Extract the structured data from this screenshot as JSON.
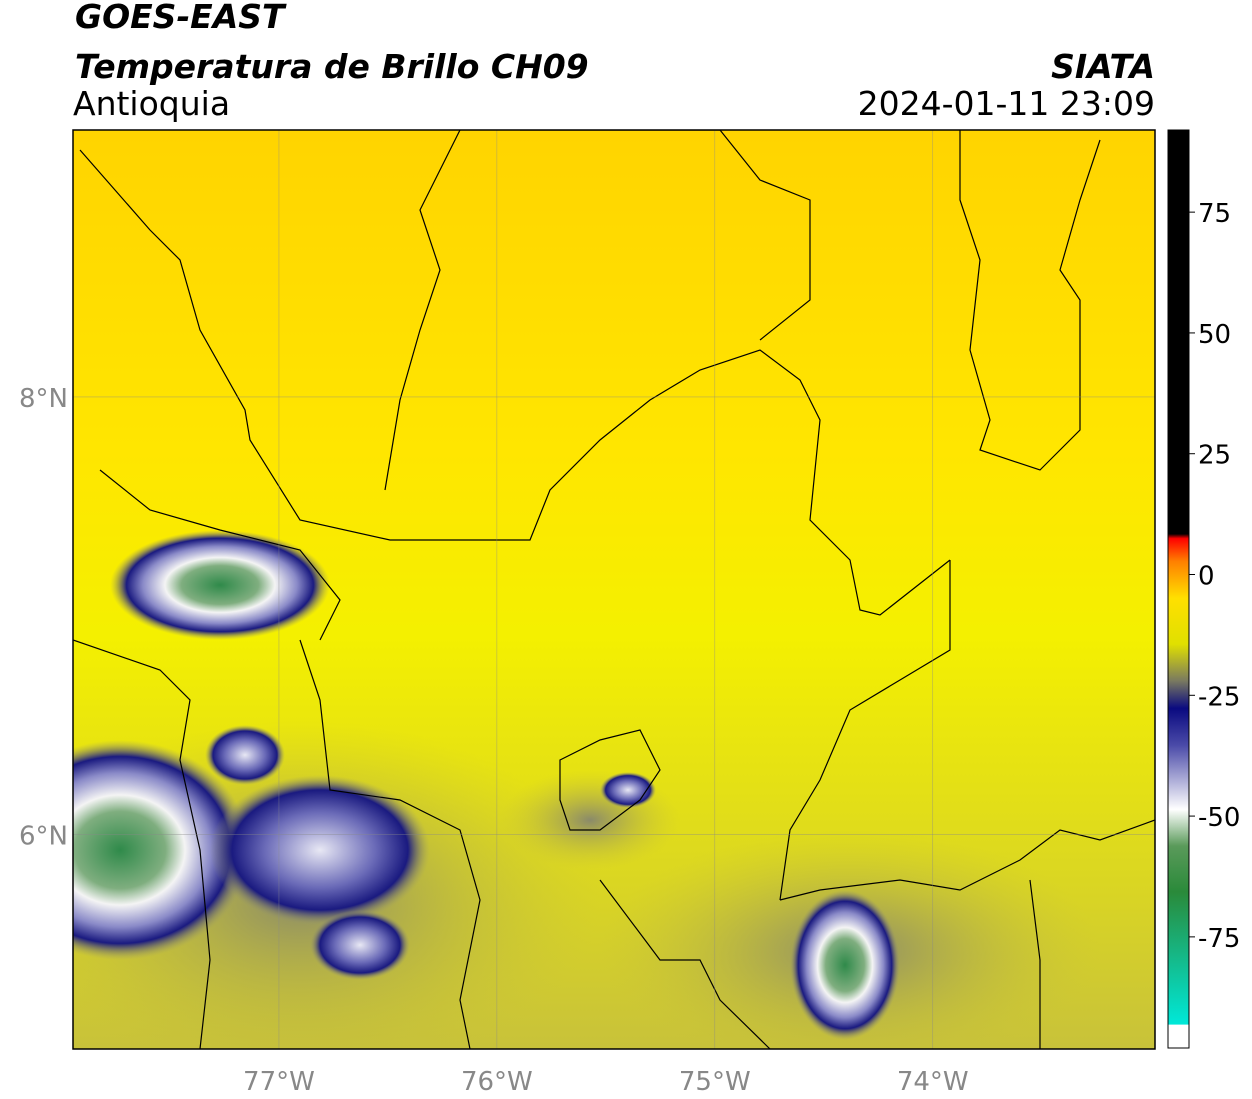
{
  "header": {
    "title": "GOES-EAST",
    "subtitle": "Temperatura de Brillo CH09",
    "region": "Antioquia",
    "source": "SIATA",
    "datetime": "2024-01-11 23:09"
  },
  "map": {
    "lonlim": [
      -77.945,
      -72.98
    ],
    "latlim": [
      5.02,
      9.22
    ],
    "xticks": [
      {
        "value": -77,
        "label": "77°W"
      },
      {
        "value": -76,
        "label": "76°W"
      },
      {
        "value": -75,
        "label": "75°W"
      },
      {
        "value": -74,
        "label": "74°W"
      }
    ],
    "yticks": [
      {
        "value": 8,
        "label": "8°N"
      },
      {
        "value": 6,
        "label": "6°N"
      }
    ]
  },
  "colorbar": {
    "lim": [
      -98,
      92
    ],
    "ticks": [
      75,
      50,
      25,
      0,
      -25,
      -50,
      -75
    ]
  }
}
